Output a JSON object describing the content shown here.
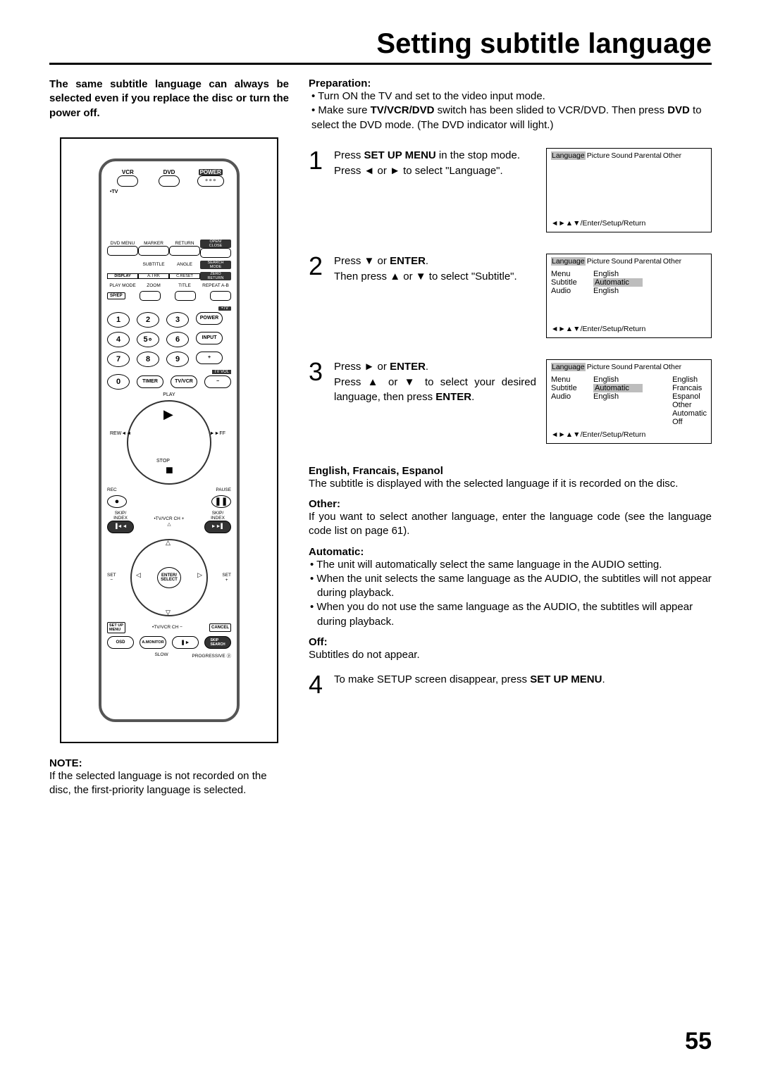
{
  "title": "Setting subtitle language",
  "intro": "The same subtitle language can always be selected even if you replace the disc or turn the power off.",
  "remote": {
    "top_labels": [
      "VCR",
      "DVD",
      "POWER"
    ],
    "tv_label": "TV",
    "row_a": [
      "DVD MENU",
      "MARKER",
      "RETURN",
      "OPEN/\nCLOSE"
    ],
    "row_b": [
      "SUBTITLE",
      "ANGLE",
      "SEARCH\nMODE"
    ],
    "row_c": [
      "DISPLAY",
      "A.TRK",
      "C.RESET",
      "ZERO\nRETURN"
    ],
    "row_d": [
      "PLAY MODE",
      "ZOOM",
      "TITLE",
      "REPEAT A-B"
    ],
    "spep": "SP/EP",
    "tv2": "TV",
    "nums": [
      "1",
      "2",
      "3",
      "4",
      "5",
      "6",
      "7",
      "8",
      "9",
      "0"
    ],
    "side_btns": [
      "POWER",
      "INPUT",
      "+",
      "TV VOL",
      "−"
    ],
    "timer": "TIMER",
    "tvvcr": "TV/VCR",
    "play_labels": {
      "play": "PLAY",
      "rew": "REW",
      "ff": "FF",
      "stop": "STOP",
      "rec": "REC",
      "pause": "PAUSE"
    },
    "skip_index_l": "SKIP/\nINDEX",
    "skip_index_r": "SKIP/\nINDEX",
    "tvvcr_ch_plus": "TV/VCR CH +",
    "tvvcr_ch_minus": "TV/VCR CH −",
    "set_minus": "SET\n−",
    "set_plus": "SET\n+",
    "enter_select": "ENTER/\nSELECT",
    "setup_menu": "SET UP\nMENU",
    "cancel": "CANCEL",
    "osd": "OSD",
    "amonitor": "A.MONITOR",
    "slow": "SLOW",
    "skip_search": "SKIP\nSEARCH",
    "progressive": "PROGRESSIVE"
  },
  "note": {
    "label": "NOTE:",
    "text": "If the selected language is not recorded on the disc, the first-priority language is selected."
  },
  "prepLabel": "Preparation:",
  "prepBullets": [
    "Turn ON the TV and set to the video input mode.",
    "Make sure <b>TV/VCR/DVD</b> switch has been slided to VCR/DVD. Then press <b>DVD</b> to select the DVD mode. (The DVD indicator will light.)"
  ],
  "steps": [
    {
      "num": "1",
      "text": "Press <b>SET UP MENU</b> in the stop mode.<br>Press <span class='arrow'>◄</span> or <span class='arrow'>►</span> to select \"Language\".",
      "osd": {
        "tabs": [
          "Language",
          "Picture",
          "Sound",
          "Parental",
          "Other"
        ],
        "tabHighlight": 0,
        "rows": [],
        "footer": "◄►▲▼/Enter/Setup/Return"
      }
    },
    {
      "num": "2",
      "text": "Press <span class='arrow'>▼</span> or <b>ENTER</b>.<br>Then press <span class='arrow'>▲</span> or <span class='arrow'>▼</span> to select \"Subtitle\".",
      "osd": {
        "tabs": [
          "Language",
          "Picture",
          "Sound",
          "Parental",
          "Other"
        ],
        "tabHighlight": 0,
        "rows": [
          {
            "k": "Menu",
            "v": "English"
          },
          {
            "k": "Subtitle",
            "v": "Automatic",
            "vh": true
          },
          {
            "k": "Audio",
            "v": "English"
          }
        ],
        "footer": "◄►▲▼/Enter/Setup/Return"
      }
    },
    {
      "num": "3",
      "text": "Press <span class='arrow'>►</span> or <b>ENTER</b>.<br>Press <span class='arrow'>▲</span> or <span class='arrow'>▼</span> to select your desired language, then press <b>ENTER</b>.",
      "osd": {
        "tabs": [
          "Language",
          "Picture",
          "Sound",
          "Parental",
          "Other"
        ],
        "tabHighlight": 0,
        "rows": [
          {
            "k": "Menu",
            "v": "English"
          },
          {
            "k": "Subtitle",
            "v": "Automatic",
            "vh": true
          },
          {
            "k": "Audio",
            "v": "English"
          }
        ],
        "opts": [
          "English",
          "Francais",
          "Espanol",
          "Other",
          "Automatic",
          "Off"
        ],
        "optHighlight": 4,
        "footer": "◄►▲▼/Enter/Setup/Return"
      }
    }
  ],
  "sections": [
    {
      "h": "English, Francais, Espanol",
      "p": "The subtitle is displayed with the selected language if it is recorded on the disc."
    },
    {
      "h": "Other:",
      "p": "If you want to select another language, enter the language code (see the language code list on page 61)."
    },
    {
      "h": "Automatic:",
      "bullets": [
        "The unit will automatically select the same language in the AUDIO setting.",
        "When the unit selects the same language as the AUDIO, the subtitles will not appear during playback.",
        "When you do not use the same language as the AUDIO, the subtitles will appear during playback."
      ]
    },
    {
      "h": "Off:",
      "p": "Subtitles do not appear."
    }
  ],
  "step4": {
    "num": "4",
    "text": "To make SETUP screen disappear, press <b>SET UP MENU</b>."
  },
  "pageNum": "55"
}
